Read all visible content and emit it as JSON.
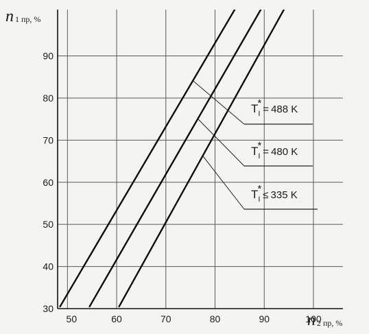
{
  "chart_data": {
    "type": "line",
    "xlabel": {
      "main": "n",
      "sub": "2 пр, %"
    },
    "ylabel": {
      "main": "n",
      "sub": "1 пр, %"
    },
    "xlim": [
      48,
      106
    ],
    "ylim": [
      30,
      101
    ],
    "xticks": [
      "50",
      "60",
      "70",
      "80",
      "90",
      "100"
    ],
    "yticks": [
      "30",
      "40",
      "50",
      "60",
      "70",
      "80",
      "90"
    ],
    "grid": true,
    "series": [
      {
        "name": "T1* = 488 K",
        "T": "T",
        "sub": "I",
        "sup": "*",
        "rel": "=",
        "val": "488 K",
        "x": [
          48.5,
          84
        ],
        "y": [
          30.5,
          101
        ]
      },
      {
        "name": "T1* = 480 K",
        "T": "T",
        "sub": "I",
        "sup": "*",
        "rel": "=",
        "val": "480 K",
        "x": [
          54.5,
          89.3
        ],
        "y": [
          30.5,
          101
        ]
      },
      {
        "name": "T1* ≤ 335 K",
        "T": "T",
        "sub": "I",
        "sup": "*",
        "rel": "≤",
        "val": "335 K",
        "x": [
          60.5,
          94
        ],
        "y": [
          30.5,
          101
        ]
      }
    ],
    "leaders": [
      {
        "series": 0,
        "at_x": 75.5
      },
      {
        "series": 1,
        "at_x": 76.5
      },
      {
        "series": 2,
        "at_x": 77.5
      }
    ]
  }
}
